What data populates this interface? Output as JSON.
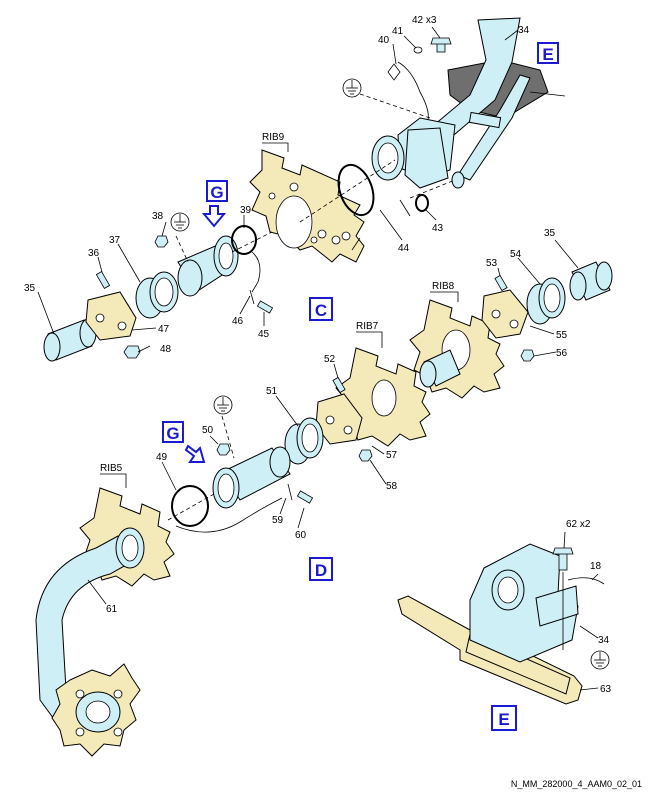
{
  "callouts": {
    "c34a": "34",
    "c34b": "34",
    "c35a": "35",
    "c35b": "35",
    "c36": "36",
    "c37": "37",
    "c38": "38",
    "c39": "39",
    "c40": "40",
    "c41": "41",
    "c42": "42 x3",
    "c43": "43",
    "c44": "44",
    "c45": "45",
    "c46": "46",
    "c47": "47",
    "c48": "48",
    "c49": "49",
    "c50": "50",
    "c51": "51",
    "c52": "52",
    "c53": "53",
    "c54": "54",
    "c55": "55",
    "c56": "56",
    "c57": "57",
    "c58": "58",
    "c59": "59",
    "c60": "60",
    "c61": "61",
    "c62": "62 x2",
    "c63": "63",
    "c18": "18"
  },
  "ribs": {
    "rib9": "RIB9",
    "rib8": "RIB8",
    "rib7": "RIB7",
    "rib5": "RIB5"
  },
  "view_labels": {
    "e_top": "E",
    "g_upper": "G",
    "c": "C",
    "g_lower": "G",
    "d": "D",
    "e_bottom": "E"
  },
  "footer": "N_MM_282000_4_AAM0_02_01",
  "colors": {
    "pipe": "#cdeff5",
    "plate": "#f4eab9",
    "label_blue": "#1a1ad0"
  }
}
